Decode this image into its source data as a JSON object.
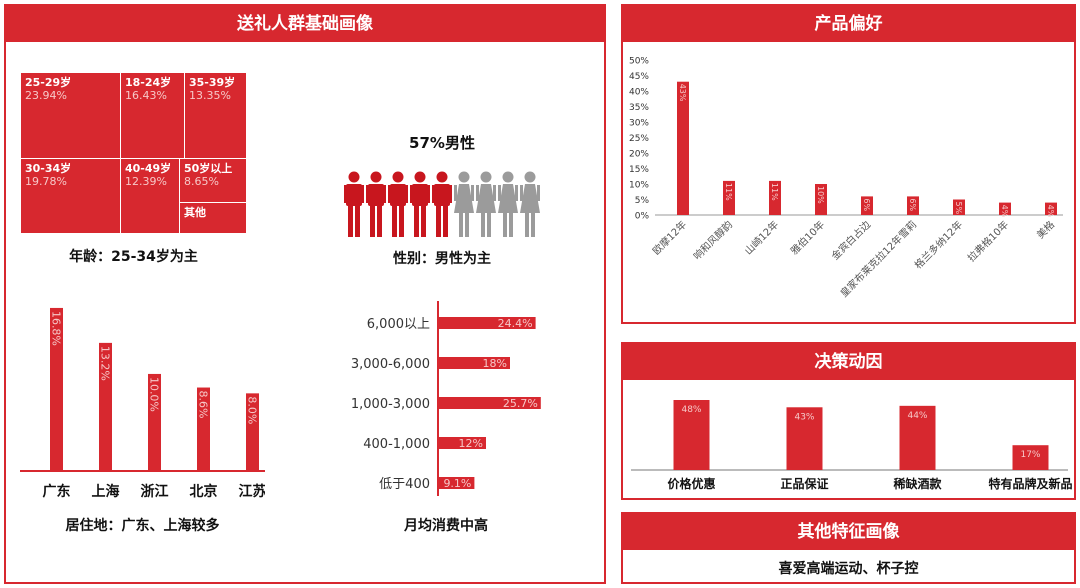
{
  "colors": {
    "accent": "#d7282f",
    "male": "#c8161e",
    "female": "#9b9b9b"
  },
  "left": {
    "title": "送礼人群基础画像",
    "age": {
      "cells": [
        {
          "label": "25-29岁",
          "value": "23.94%"
        },
        {
          "label": "18-24岁",
          "value": "16.43%"
        },
        {
          "label": "35-39岁",
          "value": "13.35%"
        },
        {
          "label": "30-34岁",
          "value": "19.78%"
        },
        {
          "label": "40-49岁",
          "value": "12.39%"
        },
        {
          "label": "50岁以上",
          "value": "8.65%"
        },
        {
          "label": "其他",
          "value": ""
        }
      ],
      "caption": "年龄：25-34岁为主"
    },
    "gender": {
      "headline": "57%男性",
      "male_icons": 5,
      "female_icons": 4,
      "caption": "性别：男性为主"
    },
    "caption_region": "居住地：广东、上海较多",
    "caption_spend": "月均消费中高"
  },
  "product": {
    "title": "产品偏好"
  },
  "decision": {
    "title": "决策动因"
  },
  "other": {
    "title": "其他特征画像",
    "text": "喜爱高端运动、杯子控"
  },
  "chart_data": [
    {
      "id": "region",
      "type": "bar",
      "categories": [
        "广东",
        "上海",
        "浙江",
        "北京",
        "江苏"
      ],
      "values": [
        16.8,
        13.2,
        10.0,
        8.6,
        8.0
      ],
      "labels": [
        "16.8%",
        "13.2%",
        "10.0%",
        "8.6%",
        "8.0%"
      ]
    },
    {
      "id": "spend",
      "type": "bar",
      "orientation": "horizontal",
      "categories": [
        "6,000以上",
        "3,000-6,000",
        "1,000-3,000",
        "400-1,000",
        "低于400"
      ],
      "values": [
        24.4,
        18,
        25.7,
        12,
        9.1
      ],
      "labels": [
        "24.4%",
        "18%",
        "25.7%",
        "12%",
        "9.1%"
      ]
    },
    {
      "id": "product",
      "type": "bar",
      "categories": [
        "欧摩12年",
        "响和风醇韵",
        "山崎12年",
        "雅伯10年",
        "金宾白占边",
        "皇家布莱克拉12年雪莉",
        "格兰多纳12年",
        "拉弗格10年",
        "美格"
      ],
      "values": [
        43,
        11,
        11,
        10,
        6,
        6,
        5,
        4,
        4
      ],
      "labels": [
        "43%",
        "11%",
        "11%",
        "10%",
        "6%",
        "6%",
        "5%",
        "4%",
        "4%"
      ],
      "ylim": [
        0,
        50
      ],
      "yticks": [
        "0%",
        "5%",
        "10%",
        "15%",
        "20%",
        "25%",
        "30%",
        "35%",
        "40%",
        "45%",
        "50%"
      ],
      "grid": false
    },
    {
      "id": "decision",
      "type": "bar",
      "categories": [
        "价格优惠",
        "正品保证",
        "稀缺酒款",
        "特有品牌及新品"
      ],
      "values": [
        48,
        43,
        44,
        17
      ],
      "labels": [
        "48%",
        "43%",
        "44%",
        "17%"
      ]
    }
  ]
}
